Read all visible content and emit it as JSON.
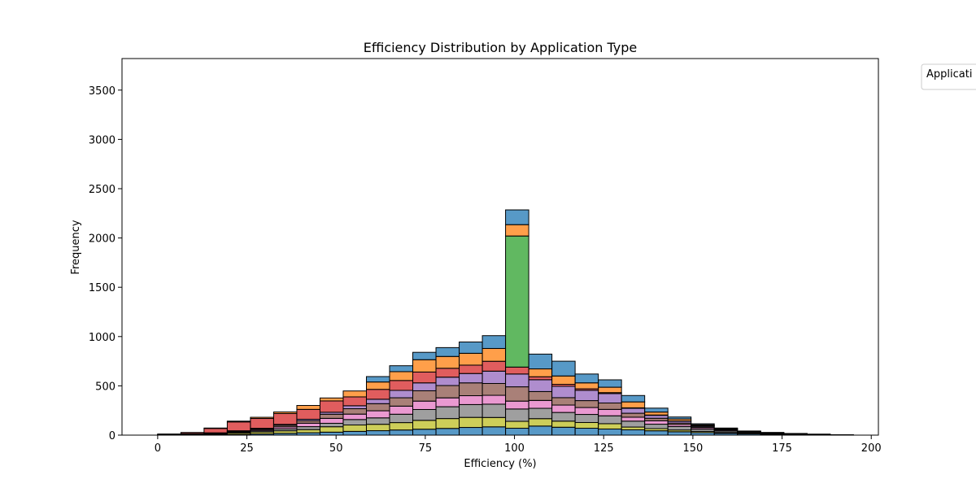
{
  "chart_data": {
    "type": "bar",
    "subtype": "stacked-histogram",
    "title": "Efficiency Distribution by Application Type",
    "xlabel": "Efficiency (%)",
    "ylabel": "Frequency",
    "xlim": [
      -10,
      202
    ],
    "ylim": [
      0,
      3820
    ],
    "xticks": [
      0,
      25,
      50,
      75,
      100,
      125,
      150,
      175,
      200
    ],
    "yticks": [
      0,
      500,
      1000,
      1500,
      2000,
      2500,
      3000,
      3500
    ],
    "bin_edges": [
      0,
      6.5,
      13,
      19.5,
      26,
      32.5,
      39,
      45.5,
      52,
      58.5,
      65,
      71.5,
      78,
      84.5,
      91,
      97.5,
      104,
      110.5,
      117,
      123.5,
      130,
      136.5,
      143,
      149.5,
      156,
      162.5,
      169,
      175.5,
      182,
      188.5,
      195
    ],
    "grid": false,
    "legend": {
      "title": "Applicati",
      "placement": "outside-top-right"
    },
    "series": [
      {
        "color": "#1f77b4",
        "values": [
          2,
          3,
          5,
          8,
          12,
          18,
          24,
          30,
          38,
          45,
          52,
          60,
          68,
          78,
          84,
          70,
          92,
          80,
          70,
          62,
          54,
          44,
          34,
          25,
          18,
          12,
          8,
          5,
          3,
          1
        ]
      },
      {
        "color": "#bcbd22",
        "values": [
          2,
          4,
          8,
          15,
          20,
          26,
          32,
          55,
          65,
          65,
          75,
          90,
          100,
          102,
          95,
          70,
          75,
          62,
          58,
          54,
          28,
          22,
          18,
          12,
          8,
          5,
          4,
          3,
          2,
          1
        ]
      },
      {
        "color": "#7f7f7f",
        "values": [
          1,
          2,
          4,
          8,
          12,
          20,
          30,
          35,
          55,
          65,
          85,
          110,
          120,
          130,
          135,
          125,
          105,
          88,
          82,
          80,
          60,
          45,
          35,
          22,
          15,
          10,
          6,
          4,
          2,
          1
        ]
      },
      {
        "color": "#e377c2",
        "values": [
          1,
          2,
          3,
          6,
          12,
          20,
          35,
          50,
          55,
          72,
          82,
          85,
          90,
          90,
          90,
          80,
          80,
          75,
          70,
          65,
          40,
          35,
          20,
          15,
          10,
          5,
          3,
          2,
          1,
          1
        ]
      },
      {
        "color": "#8c564b",
        "values": [
          1,
          1,
          2,
          4,
          8,
          15,
          25,
          42,
          55,
          72,
          85,
          105,
          125,
          130,
          120,
          145,
          90,
          75,
          70,
          65,
          40,
          25,
          15,
          10,
          5,
          3,
          2,
          1,
          1,
          0
        ]
      },
      {
        "color": "#9467bd",
        "values": [
          0,
          1,
          1,
          3,
          5,
          10,
          15,
          20,
          30,
          45,
          75,
          80,
          85,
          95,
          125,
          130,
          120,
          115,
          105,
          95,
          50,
          30,
          20,
          10,
          5,
          2,
          1,
          1,
          0,
          0
        ]
      },
      {
        "color": "#d62728",
        "values": [
          3,
          12,
          45,
          90,
          100,
          110,
          100,
          115,
          90,
          100,
          100,
          110,
          90,
          85,
          100,
          70,
          30,
          20,
          15,
          10,
          5,
          3,
          2,
          1,
          1,
          0,
          0,
          0,
          0,
          0
        ]
      },
      {
        "color": "#2ca02c",
        "values": [
          0,
          0,
          0,
          0,
          0,
          0,
          0,
          0,
          0,
          0,
          0,
          0,
          0,
          0,
          0,
          1330,
          0,
          0,
          0,
          0,
          0,
          0,
          0,
          0,
          0,
          0,
          0,
          0,
          0,
          0
        ]
      },
      {
        "color": "#ff7f0e",
        "values": [
          1,
          2,
          4,
          8,
          12,
          16,
          40,
          30,
          60,
          75,
          90,
          125,
          120,
          120,
          130,
          115,
          80,
          85,
          60,
          55,
          60,
          30,
          20,
          10,
          5,
          3,
          2,
          1,
          1,
          0
        ]
      },
      {
        "color": "#1f77b4",
        "values": [
          0,
          0,
          0,
          0,
          0,
          0,
          0,
          0,
          0,
          55,
          60,
          75,
          90,
          115,
          130,
          150,
          150,
          150,
          90,
          75,
          65,
          40,
          20,
          10,
          5,
          2,
          1,
          0,
          0,
          0
        ]
      }
    ]
  }
}
